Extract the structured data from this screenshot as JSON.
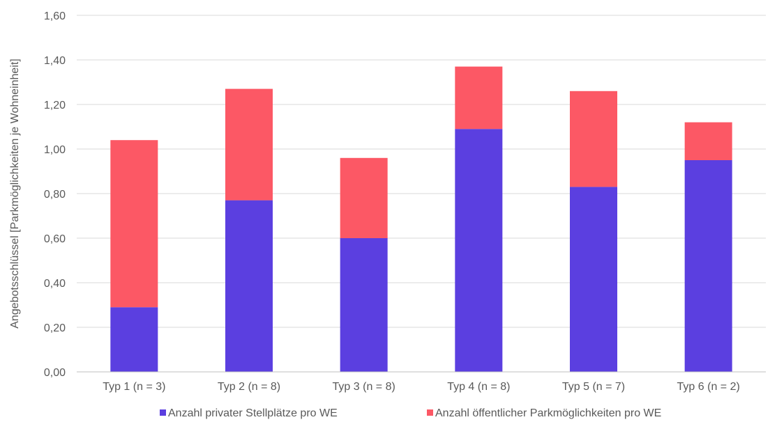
{
  "chart_data": {
    "type": "bar",
    "stacked": true,
    "title": "",
    "xlabel": "",
    "ylabel": "Angebotsschlüssel [Parkmöglichkeiten je Wohneinheit]",
    "ylim": [
      0,
      1.6
    ],
    "y_ticks": [
      "0,00",
      "0,20",
      "0,40",
      "0,60",
      "0,80",
      "1,00",
      "1,20",
      "1,40",
      "1,60"
    ],
    "y_tick_values": [
      0,
      0.2,
      0.4,
      0.6,
      0.8,
      1.0,
      1.2,
      1.4,
      1.6
    ],
    "grid": true,
    "legend_position": "bottom",
    "categories": [
      "Typ 1 (n = 3)",
      "Typ 2 (n = 8)",
      "Typ 3 (n = 8)",
      "Typ 4 (n = 8)",
      "Typ 5 (n = 7)",
      "Typ 6 (n = 2)"
    ],
    "series": [
      {
        "name": "Anzahl privater Stellplätze pro WE",
        "color": "#5b3fe0",
        "values": [
          0.29,
          0.77,
          0.6,
          1.09,
          0.83,
          0.95
        ]
      },
      {
        "name": "Anzahl öffentlicher Parkmöglichkeiten pro WE",
        "color": "#fc5865",
        "values": [
          0.75,
          0.5,
          0.36,
          0.28,
          0.43,
          0.17
        ]
      }
    ]
  }
}
